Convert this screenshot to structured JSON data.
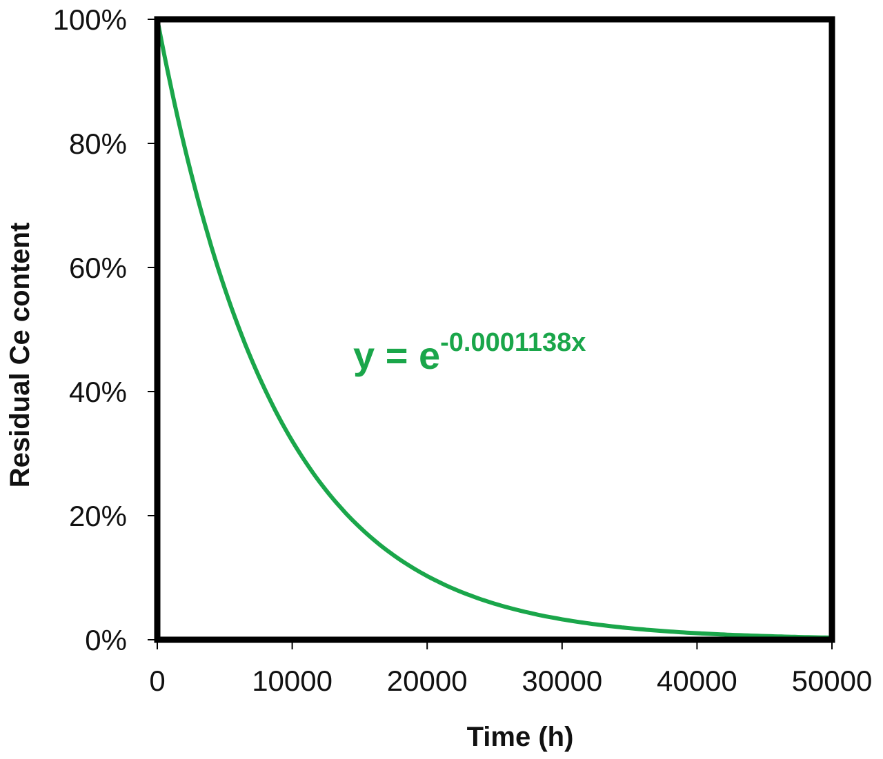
{
  "chart_data": {
    "type": "line",
    "title": "",
    "xlabel": "Time (h)",
    "ylabel": "Residual Ce content",
    "xlim": [
      0,
      50000
    ],
    "ylim": [
      0,
      1
    ],
    "x_ticks": [
      "0",
      "10000",
      "20000",
      "30000",
      "40000",
      "50000"
    ],
    "y_ticks": [
      "0%",
      "20%",
      "40%",
      "60%",
      "80%",
      "100%"
    ],
    "grid": false,
    "legend": null,
    "series": [
      {
        "name": "y = e^(-0.0001138x)",
        "color": "#1aa64a",
        "x": [
          0,
          5000,
          10000,
          15000,
          20000,
          25000,
          30000,
          35000,
          40000,
          45000,
          50000
        ],
        "values": [
          1.0,
          0.566,
          0.32,
          0.181,
          0.103,
          0.058,
          0.033,
          0.019,
          0.011,
          0.006,
          0.003
        ]
      }
    ],
    "annotations": [
      {
        "text_base": "y = e",
        "text_exponent": "-0.0001138x",
        "color": "#1aa64a"
      }
    ]
  },
  "equation": {
    "base": "y = e",
    "exponent": "-0.0001138x"
  },
  "axes": {
    "xlabel": "Time (h)",
    "ylabel": "Residual Ce content"
  }
}
